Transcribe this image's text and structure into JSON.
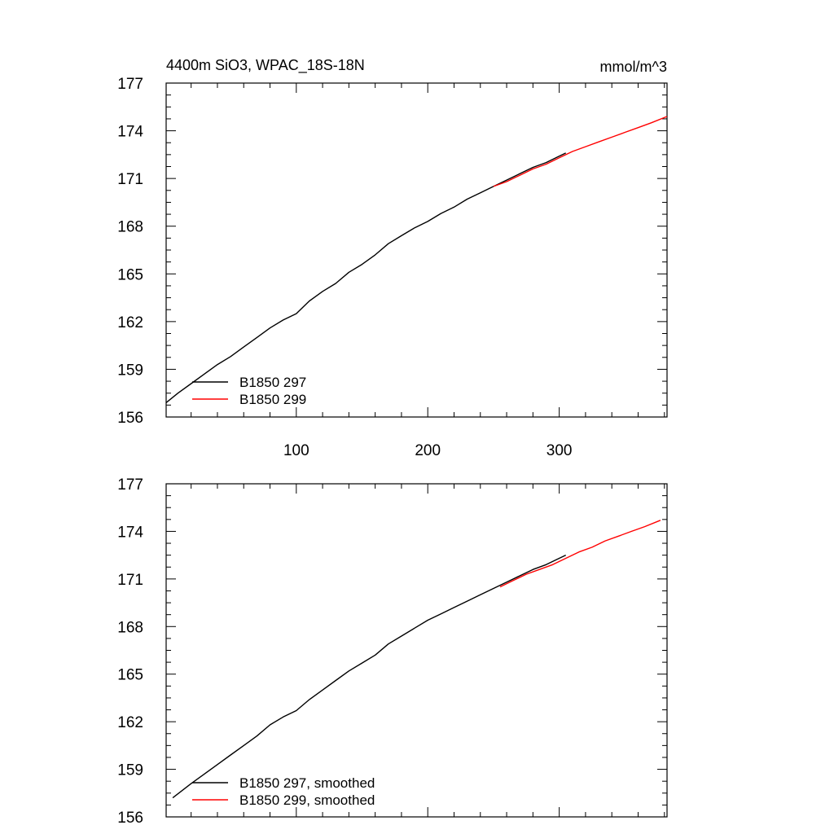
{
  "chart_data": [
    {
      "type": "line",
      "title": "4400m SiO3, WPAC_18S-18N",
      "units_label": "mmol/m^3",
      "xlim": [
        1,
        382
      ],
      "ylim": [
        156,
        177
      ],
      "yticks": [
        156,
        159,
        162,
        165,
        168,
        171,
        174,
        177
      ],
      "xticks": [
        100,
        200,
        300
      ],
      "grid": false,
      "legend_position": "bottom-left",
      "series": [
        {
          "name": "B1850 297",
          "color": "#000000",
          "x": [
            1,
            10,
            20,
            30,
            40,
            50,
            60,
            70,
            80,
            90,
            100,
            110,
            120,
            130,
            140,
            150,
            160,
            170,
            180,
            190,
            200,
            210,
            220,
            230,
            240,
            250,
            260,
            270,
            280,
            290,
            300,
            305
          ],
          "y": [
            156.9,
            157.5,
            158.1,
            158.7,
            159.3,
            159.8,
            160.4,
            161.0,
            161.6,
            162.1,
            162.5,
            163.3,
            163.9,
            164.4,
            165.1,
            165.6,
            166.2,
            166.9,
            167.4,
            167.9,
            168.3,
            168.8,
            169.2,
            169.7,
            170.1,
            170.5,
            170.9,
            171.3,
            171.7,
            172.0,
            172.4,
            172.6
          ]
        },
        {
          "name": "B1850 299",
          "color": "#ff0000",
          "x": [
            250,
            260,
            270,
            280,
            290,
            300,
            310,
            320,
            330,
            340,
            350,
            360,
            370,
            382
          ],
          "y": [
            170.5,
            170.8,
            171.2,
            171.6,
            171.9,
            172.3,
            172.7,
            173.0,
            173.3,
            173.6,
            173.9,
            174.2,
            174.5,
            174.9
          ]
        }
      ]
    },
    {
      "type": "line",
      "title": "",
      "xlim": [
        1,
        382
      ],
      "ylim": [
        156,
        177
      ],
      "yticks": [
        156,
        159,
        162,
        165,
        168,
        171,
        174,
        177
      ],
      "xticks": [
        100,
        200,
        300
      ],
      "grid": false,
      "legend_position": "bottom-left",
      "series": [
        {
          "name": "B1850 297, smoothed",
          "color": "#000000",
          "x": [
            6,
            20,
            30,
            40,
            50,
            60,
            70,
            80,
            90,
            100,
            110,
            120,
            130,
            140,
            150,
            160,
            170,
            180,
            190,
            200,
            210,
            220,
            230,
            240,
            250,
            260,
            270,
            280,
            290,
            300,
            305
          ],
          "y": [
            157.2,
            158.1,
            158.7,
            159.3,
            159.9,
            160.5,
            161.1,
            161.8,
            162.3,
            162.7,
            163.4,
            164.0,
            164.6,
            165.2,
            165.7,
            166.2,
            166.9,
            167.4,
            167.9,
            168.4,
            168.8,
            169.2,
            169.6,
            170.0,
            170.4,
            170.8,
            171.2,
            171.6,
            171.9,
            172.3,
            172.5
          ]
        },
        {
          "name": "B1850 299, smoothed",
          "color": "#ff0000",
          "x": [
            255,
            265,
            275,
            285,
            295,
            305,
            315,
            325,
            335,
            345,
            355,
            365,
            377
          ],
          "y": [
            170.5,
            170.9,
            171.3,
            171.6,
            171.9,
            172.3,
            172.7,
            173.0,
            173.4,
            173.7,
            174.0,
            174.3,
            174.7
          ]
        }
      ]
    }
  ]
}
